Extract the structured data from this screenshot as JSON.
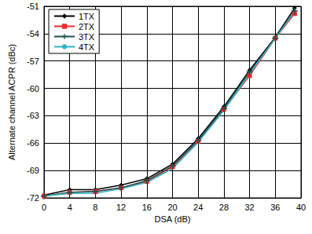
{
  "chart_data": {
    "type": "line",
    "x_label": "DSA (dB)",
    "y_label": "Alternate channel ACPR (dBc)",
    "xlim": [
      0,
      40
    ],
    "xticks": [
      0,
      4,
      8,
      12,
      16,
      20,
      24,
      28,
      32,
      36,
      40
    ],
    "ylim": [
      -72,
      -51
    ],
    "yticks": [
      -72,
      -69,
      -66,
      -63,
      -60,
      -57,
      -54,
      -51
    ],
    "grid": true,
    "legend": "upper left",
    "x": [
      0,
      4,
      8,
      12,
      16,
      20,
      24,
      28,
      32,
      36,
      39
    ],
    "series": [
      {
        "name": "1TX",
        "color": "#000000",
        "marker": "diamond",
        "line_style": "solid",
        "values": [
          -71.7,
          -71.1,
          -71.1,
          -70.6,
          -69.9,
          -68.3,
          -65.5,
          -62.0,
          -58.0,
          -54.4,
          -51.2
        ]
      },
      {
        "name": "2TX",
        "color": "#ee2a2a",
        "marker": "square",
        "line_style": "solid",
        "values": [
          -71.8,
          -71.4,
          -71.3,
          -70.9,
          -70.2,
          -68.6,
          -65.8,
          -62.3,
          -58.6,
          -54.5,
          -51.8
        ]
      },
      {
        "name": "3TX",
        "color": "#1f4f4f",
        "marker": "plus",
        "line_style": "solid",
        "values": [
          -71.8,
          -71.4,
          -71.3,
          -70.9,
          -70.1,
          -68.5,
          -65.7,
          -62.2,
          -58.2,
          -54.5,
          -51.5
        ]
      },
      {
        "name": "4TX",
        "color": "#2bb5c8",
        "marker": "none",
        "line_style": "solid",
        "values": [
          -71.8,
          -71.5,
          -71.5,
          -71.0,
          -70.3,
          -68.8,
          -65.9,
          -62.4,
          -58.4,
          -54.5,
          -51.6
        ]
      }
    ]
  }
}
